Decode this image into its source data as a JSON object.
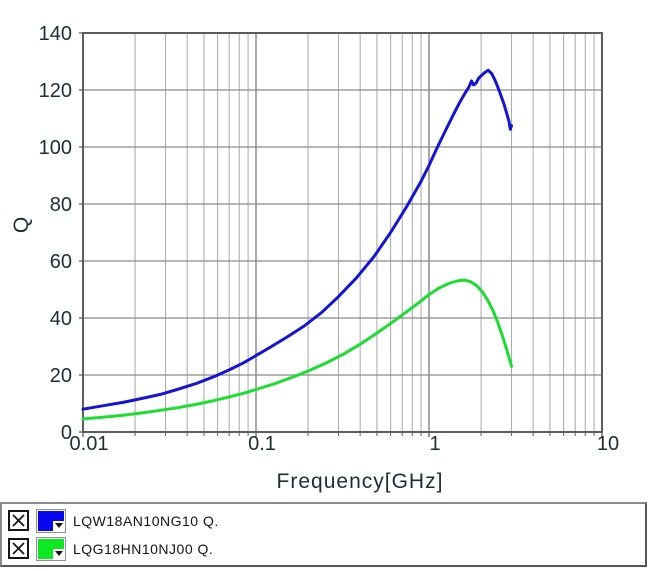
{
  "chart_data": {
    "type": "line",
    "title": "",
    "xlabel": "Frequency[GHz]",
    "ylabel": "Q",
    "x_scale": "log",
    "xlim": [
      0.01,
      10
    ],
    "ylim": [
      0,
      140
    ],
    "x_tick_values": [
      0.01,
      0.1,
      1,
      10
    ],
    "x_tick_labels": [
      "0.01",
      "0.1",
      "1",
      "10"
    ],
    "y_tick_values": [
      0,
      20,
      40,
      60,
      80,
      100,
      120,
      140
    ],
    "grid": true,
    "legend_position": "bottom-panel",
    "series": [
      {
        "name": "LQW18AN10NG10 Q.",
        "color": "#1414d2",
        "points": [
          [
            0.01,
            8
          ],
          [
            0.013,
            9.2
          ],
          [
            0.017,
            10.4
          ],
          [
            0.022,
            11.8
          ],
          [
            0.028,
            13.2
          ],
          [
            0.035,
            14.9
          ],
          [
            0.045,
            17
          ],
          [
            0.057,
            19.4
          ],
          [
            0.07,
            21.8
          ],
          [
            0.085,
            24.3
          ],
          [
            0.1,
            26.8
          ],
          [
            0.12,
            29.6
          ],
          [
            0.15,
            33.2
          ],
          [
            0.19,
            37.2
          ],
          [
            0.24,
            42
          ],
          [
            0.3,
            47.5
          ],
          [
            0.38,
            54
          ],
          [
            0.48,
            61.5
          ],
          [
            0.6,
            70
          ],
          [
            0.75,
            79.5
          ],
          [
            0.9,
            88
          ],
          [
            1.0,
            93.5
          ],
          [
            1.1,
            99
          ],
          [
            1.25,
            106
          ],
          [
            1.4,
            112
          ],
          [
            1.5,
            115.5
          ],
          [
            1.62,
            119
          ],
          [
            1.7,
            121
          ],
          [
            1.76,
            123.2
          ],
          [
            1.81,
            121.8
          ],
          [
            1.87,
            122.4
          ],
          [
            1.94,
            124.2
          ],
          [
            2.02,
            125.2
          ],
          [
            2.1,
            126.1
          ],
          [
            2.2,
            126.9
          ],
          [
            2.3,
            125.8
          ],
          [
            2.4,
            123.6
          ],
          [
            2.5,
            121
          ],
          [
            2.62,
            117.6
          ],
          [
            2.72,
            114.8
          ],
          [
            2.82,
            111.6
          ],
          [
            2.9,
            109
          ],
          [
            2.95,
            106.2
          ],
          [
            3.0,
            107.5
          ]
        ]
      },
      {
        "name": "LQG18HN10NJ00 Q.",
        "color": "#1bde30",
        "points": [
          [
            0.01,
            4.6
          ],
          [
            0.013,
            5.2
          ],
          [
            0.017,
            5.9
          ],
          [
            0.022,
            6.7
          ],
          [
            0.028,
            7.6
          ],
          [
            0.035,
            8.5
          ],
          [
            0.045,
            9.7
          ],
          [
            0.057,
            11
          ],
          [
            0.07,
            12.3
          ],
          [
            0.085,
            13.6
          ],
          [
            0.1,
            14.9
          ],
          [
            0.13,
            17.1
          ],
          [
            0.16,
            19.1
          ],
          [
            0.2,
            21.4
          ],
          [
            0.25,
            24
          ],
          [
            0.32,
            27.3
          ],
          [
            0.4,
            30.8
          ],
          [
            0.5,
            34.7
          ],
          [
            0.62,
            38.7
          ],
          [
            0.75,
            42.4
          ],
          [
            0.9,
            46
          ],
          [
            1.0,
            48.2
          ],
          [
            1.15,
            50.6
          ],
          [
            1.3,
            52.1
          ],
          [
            1.45,
            53
          ],
          [
            1.6,
            53.3
          ],
          [
            1.75,
            52.7
          ],
          [
            1.9,
            51.2
          ],
          [
            2.05,
            48.9
          ],
          [
            2.2,
            45.9
          ],
          [
            2.35,
            42.4
          ],
          [
            2.5,
            38.4
          ],
          [
            2.65,
            33.9
          ],
          [
            2.8,
            29.3
          ],
          [
            2.9,
            26.2
          ],
          [
            3.0,
            23
          ]
        ]
      }
    ]
  },
  "legend": {
    "items": [
      {
        "checkbox": "checked",
        "color": "#0808ee",
        "label": "LQW18AN10NG10 Q."
      },
      {
        "checkbox": "checked",
        "color": "#0ce822",
        "label": "LQG18HN10NJ00 Q."
      }
    ]
  },
  "colors": {
    "axis_text": "#1d2d36",
    "grid_minor": "#a8a8a8",
    "grid_decade": "#7a7a7a",
    "grid_major_h": "#8a8a8a",
    "plot_border": "#5d5d5d",
    "legend_text": "#141414"
  }
}
